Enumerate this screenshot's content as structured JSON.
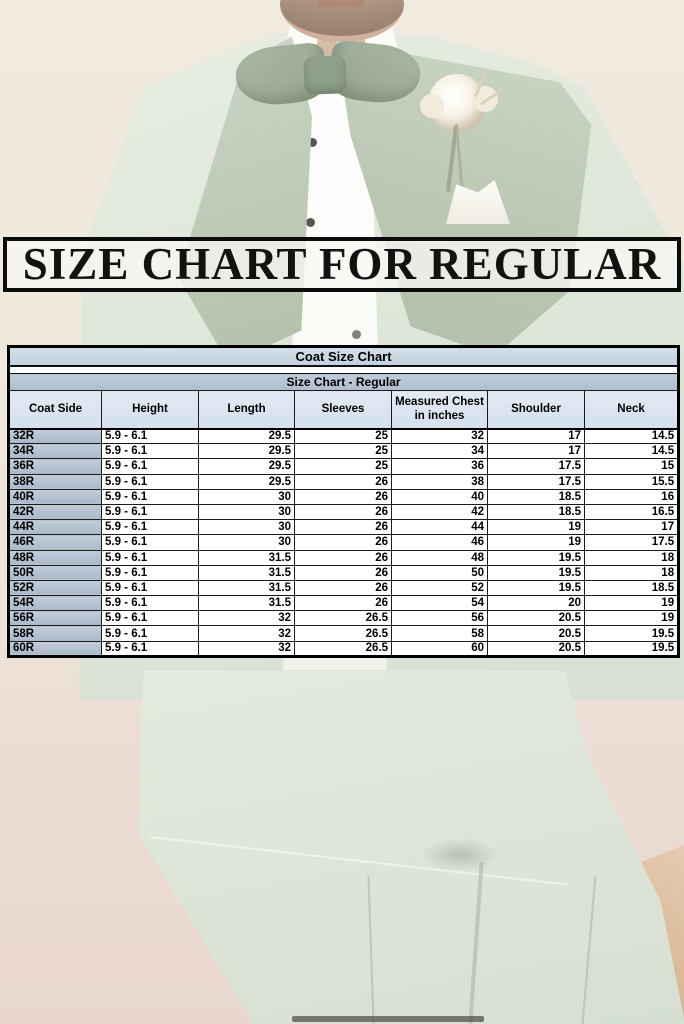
{
  "banner": {
    "title": "SIZE CHART FOR REGULAR"
  },
  "chart_data": {
    "type": "table",
    "title": "Coat Size Chart",
    "subtitle": "Size Chart - Regular",
    "columns": [
      "Coat Side",
      "Height",
      "Length",
      "Sleeves",
      "Measured Chest in inches",
      "Shoulder",
      "Neck"
    ],
    "rows": [
      [
        "32R",
        "5.9 - 6.1",
        "29.5",
        "25",
        "32",
        "17",
        "14.5"
      ],
      [
        "34R",
        "5.9 - 6.1",
        "29.5",
        "25",
        "34",
        "17",
        "14.5"
      ],
      [
        "36R",
        "5.9 - 6.1",
        "29.5",
        "25",
        "36",
        "17.5",
        "15"
      ],
      [
        "38R",
        "5.9 - 6.1",
        "29.5",
        "26",
        "38",
        "17.5",
        "15.5"
      ],
      [
        "40R",
        "5.9 - 6.1",
        "30",
        "26",
        "40",
        "18.5",
        "16"
      ],
      [
        "42R",
        "5.9 - 6.1",
        "30",
        "26",
        "42",
        "18.5",
        "16.5"
      ],
      [
        "44R",
        "5.9 - 6.1",
        "30",
        "26",
        "44",
        "19",
        "17"
      ],
      [
        "46R",
        "5.9 - 6.1",
        "30",
        "26",
        "46",
        "19",
        "17.5"
      ],
      [
        "48R",
        "5.9 - 6.1",
        "31.5",
        "26",
        "48",
        "19.5",
        "18"
      ],
      [
        "50R",
        "5.9 - 6.1",
        "31.5",
        "26",
        "50",
        "19.5",
        "18"
      ],
      [
        "52R",
        "5.9 - 6.1",
        "31.5",
        "26",
        "52",
        "19.5",
        "18.5"
      ],
      [
        "54R",
        "5.9 - 6.1",
        "31.5",
        "26",
        "54",
        "20",
        "19"
      ],
      [
        "56R",
        "5.9 - 6.1",
        "32",
        "26.5",
        "56",
        "20.5",
        "19"
      ],
      [
        "58R",
        "5.9 - 6.1",
        "32",
        "26.5",
        "58",
        "20.5",
        "19.5"
      ],
      [
        "60R",
        "5.9 - 6.1",
        "32",
        "26.5",
        "60",
        "20.5",
        "19.5"
      ]
    ],
    "layout": {
      "grid": "all-borders",
      "row_header_column": "Coat Side"
    }
  },
  "colors": {
    "table_title_bg": "#c9d6e4",
    "table_subtitle_bg": "#b2c1d2",
    "table_header_bg": "#dbe5f1",
    "row_header_bg": "#b2c0d1",
    "table_border": "#000000",
    "banner_border": "#0c0c0c",
    "suit_green": "#dde5d7",
    "lapel_green": "#bcc9b5",
    "bow_tie_green": "#9aa993",
    "background_cream": "#efe8dc",
    "background_pink": "#eadbd3",
    "floor_tan": "#d9b997"
  }
}
